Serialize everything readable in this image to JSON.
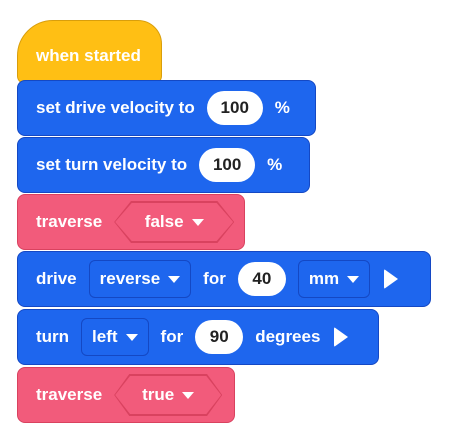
{
  "blocks": {
    "hat": {
      "label": "when started"
    },
    "drive_velocity": {
      "label": "set drive velocity to",
      "value": "100",
      "unit": "%"
    },
    "turn_velocity": {
      "label": "set turn velocity to",
      "value": "100",
      "unit": "%"
    },
    "traverse1": {
      "label": "traverse",
      "value": "false"
    },
    "drive": {
      "label": "drive",
      "direction": "reverse",
      "for": "for",
      "value": "40",
      "unit": "mm"
    },
    "turn": {
      "label": "turn",
      "direction": "left",
      "for": "for",
      "value": "90",
      "unit": "degrees"
    },
    "traverse2": {
      "label": "traverse",
      "value": "true"
    }
  },
  "colors": {
    "events_yellow": "#ffbf14",
    "drivetrain_blue": "#1e66ee",
    "custom_pink": "#f25b7b"
  },
  "icons": {
    "play": "play-icon",
    "dropdown": "chevron-down-icon"
  }
}
